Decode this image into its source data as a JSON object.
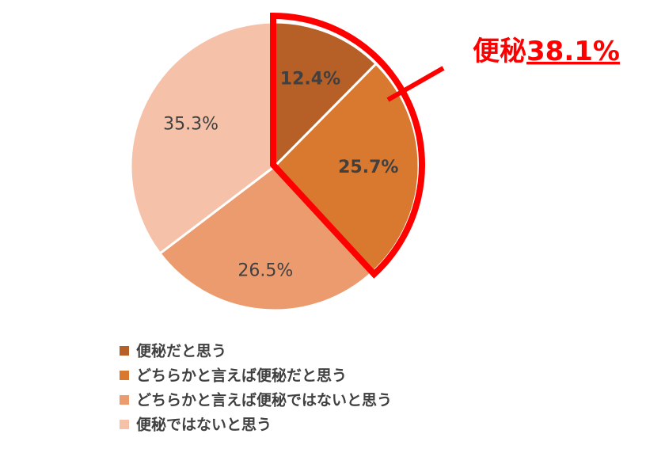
{
  "chart_data": {
    "type": "pie",
    "categories": [
      "便秘だと思う",
      "どちらかと言えば便秘だと思う",
      "どちらかと言えば便秘ではないと思う",
      "便秘ではないと思う"
    ],
    "values": [
      12.4,
      25.7,
      26.5,
      35.3
    ],
    "value_labels": [
      "12.4%",
      "25.7%",
      "26.5%",
      "35.3%"
    ],
    "colors": [
      "#b65f26",
      "#d9782f",
      "#ec9b6f",
      "#f5c1a9"
    ],
    "annotation": {
      "prefix": "便秘",
      "value": "38.1%",
      "color": "#ff0000"
    },
    "legend": "bottom"
  }
}
